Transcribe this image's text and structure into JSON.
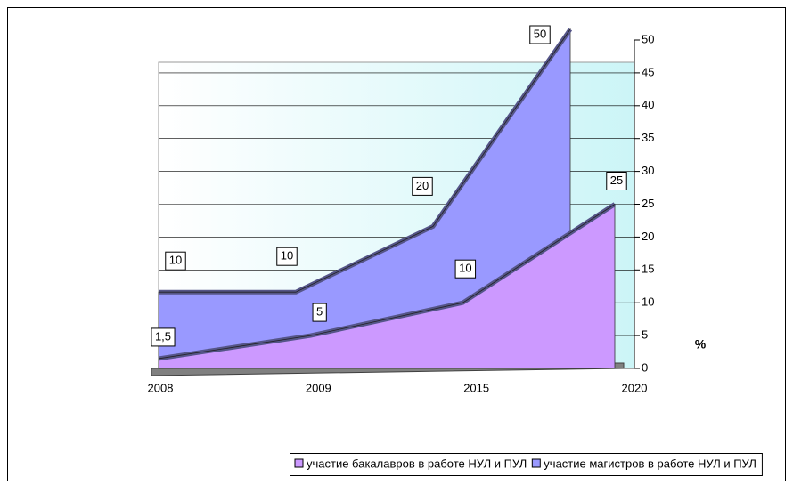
{
  "chart_data": {
    "type": "area3d",
    "categories": [
      "2008",
      "2009",
      "2015",
      "2020"
    ],
    "series": [
      {
        "name": "участие бакалавров в работе НУЛ и ПУЛ",
        "color": "#cc99ff",
        "values": [
          1.5,
          5,
          10,
          25
        ],
        "value_labels": [
          "1,5",
          "5",
          "10",
          "25"
        ]
      },
      {
        "name": "участие магистров в работе НУЛ и ПУЛ",
        "color": "#9999ff",
        "values": [
          10,
          10,
          20,
          50
        ]
      }
    ],
    "ylim": [
      0,
      50
    ],
    "yticks": [
      0,
      5,
      10,
      15,
      20,
      25,
      30,
      35,
      40,
      45,
      50
    ],
    "ylabel": "%",
    "grid": true,
    "legend": "bottom"
  }
}
